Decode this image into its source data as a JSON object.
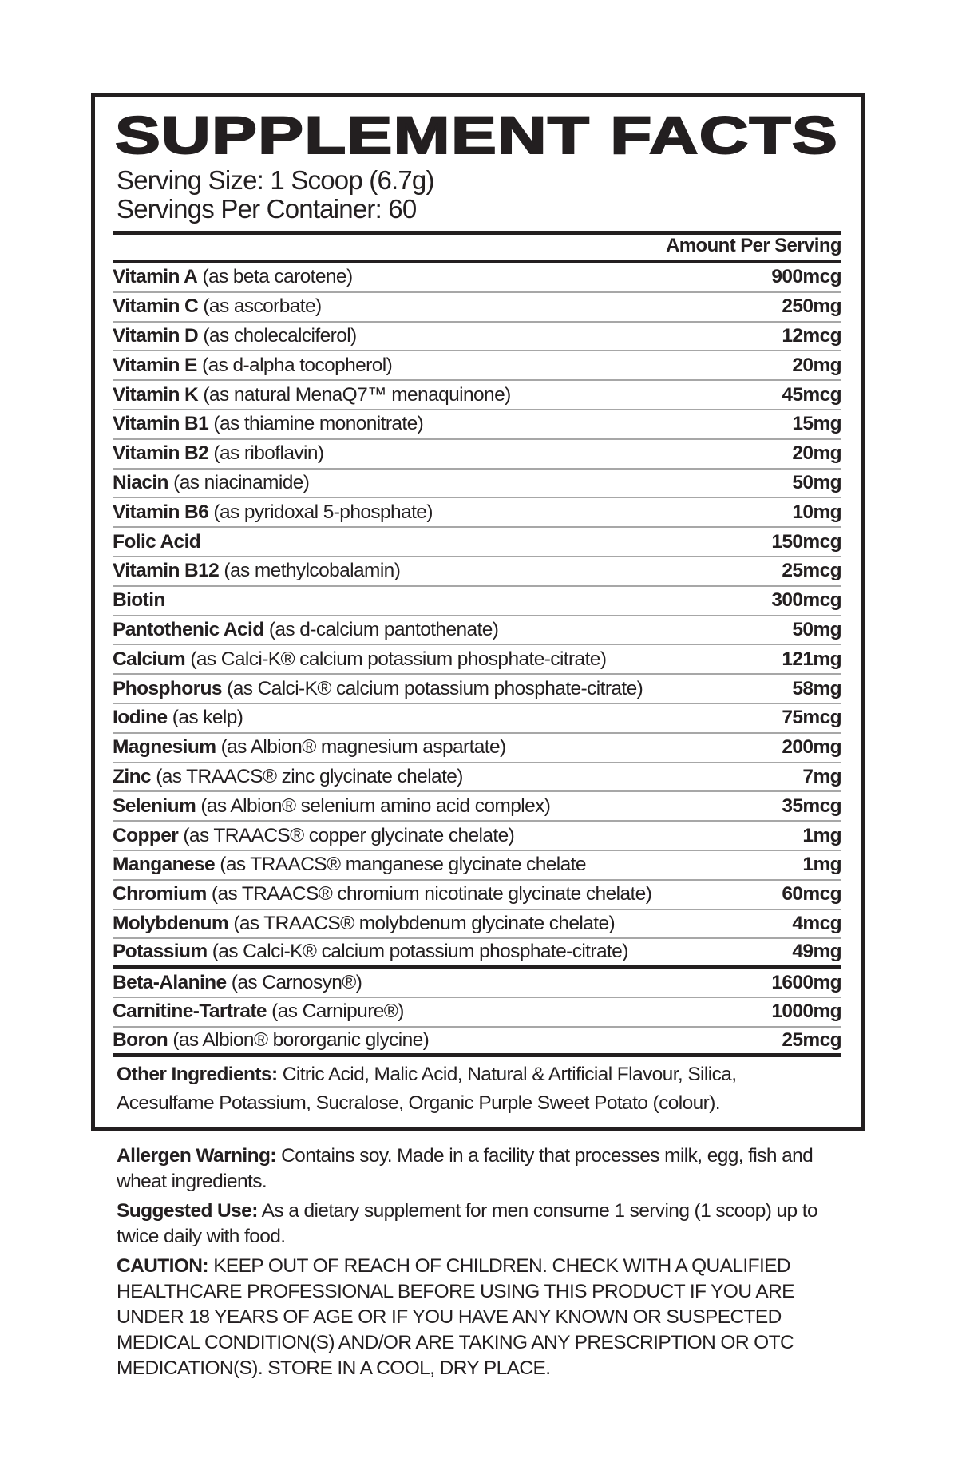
{
  "title": "SUPPLEMENT FACTS",
  "serving_size": "Serving Size: 1 Scoop (6.7g)",
  "servings_per_container": "Servings Per Container: 60",
  "amount_header": "Amount Per Serving",
  "nutrients": [
    {
      "name": "Vitamin A",
      "source": "(as beta carotene)",
      "amount": "900mcg"
    },
    {
      "name": "Vitamin C",
      "source": "(as ascorbate)",
      "amount": "250mg"
    },
    {
      "name": "Vitamin D",
      "source": "(as cholecalciferol)",
      "amount": "12mcg"
    },
    {
      "name": "Vitamin E",
      "source": "(as d-alpha tocopherol)",
      "amount": "20mg"
    },
    {
      "name": "Vitamin K",
      "source": "(as natural MenaQ7™ menaquinone)",
      "amount": "45mcg"
    },
    {
      "name": "Vitamin B1",
      "source": "(as thiamine mononitrate)",
      "amount": "15mg"
    },
    {
      "name": "Vitamin B2",
      "source": "(as riboflavin)",
      "amount": "20mg"
    },
    {
      "name": "Niacin",
      "source": "(as niacinamide)",
      "amount": "50mg"
    },
    {
      "name": "Vitamin B6",
      "source": "(as pyridoxal 5-phosphate)",
      "amount": "10mg"
    },
    {
      "name": "Folic Acid",
      "source": "",
      "amount": "150mcg"
    },
    {
      "name": "Vitamin B12",
      "source": "(as methylcobalamin)",
      "amount": "25mcg"
    },
    {
      "name": "Biotin",
      "source": "",
      "amount": "300mcg"
    },
    {
      "name": "Pantothenic Acid",
      "source": "(as d-calcium pantothenate)",
      "amount": "50mg"
    },
    {
      "name": "Calcium",
      "source": "(as Calci-K® calcium potassium phosphate-citrate)",
      "amount": "121mg"
    },
    {
      "name": "Phosphorus",
      "source": "(as Calci-K®  calcium potassium phosphate-citrate)",
      "amount": "58mg"
    },
    {
      "name": "Iodine",
      "source": "(as kelp)",
      "amount": "75mcg"
    },
    {
      "name": "Magnesium",
      "source": "(as Albion® magnesium aspartate)",
      "amount": "200mg"
    },
    {
      "name": "Zinc",
      "source": "(as TRAACS®  zinc glycinate chelate)",
      "amount": "7mg"
    },
    {
      "name": "Selenium",
      "source": "(as Albion® selenium amino acid complex)",
      "amount": "35mcg"
    },
    {
      "name": "Copper",
      "source": "(as TRAACS® copper glycinate chelate)",
      "amount": "1mg"
    },
    {
      "name": "Manganese",
      "source": "(as TRAACS® manganese glycinate chelate",
      "amount": "1mg"
    },
    {
      "name": "Chromium",
      "source": "(as TRAACS® chromium nicotinate glycinate chelate)",
      "amount": "60mcg"
    },
    {
      "name": "Molybdenum",
      "source": "(as TRAACS® molybdenum glycinate chelate)",
      "amount": "4mcg"
    },
    {
      "name": "Potassium",
      "source": "(as Calci-K® calcium potassium phosphate-citrate)",
      "amount": "49mg"
    },
    {
      "name": "Beta-Alanine",
      "source": "(as Carnosyn®)",
      "amount": "1600mg"
    },
    {
      "name": "Carnitine-Tartrate",
      "source": "(as Carnipure®)",
      "amount": "1000mg"
    },
    {
      "name": "Boron",
      "source": "(as Albion® bororganic glycine)",
      "amount": "25mcg"
    }
  ],
  "other_ingredients": {
    "label": "Other Ingredients:",
    "text": "Citric Acid, Malic Acid, Natural & Artificial Flavour, Silica, Acesulfame Potassium, Sucralose, Organic Purple Sweet Potato (colour)."
  },
  "allergen": {
    "label": "Allergen Warning:",
    "text": "Contains soy. Made in a facility that processes milk, egg, fish and wheat ingredients."
  },
  "suggested_use": {
    "label": "Suggested Use:",
    "text": "As a dietary supplement for men consume 1 serving (1 scoop) up to twice daily with food."
  },
  "caution": {
    "label": "CAUTION:",
    "text": "KEEP OUT OF REACH OF CHILDREN. CHECK WITH A QUALIFIED HEALTHCARE PROFESSIONAL BEFORE USING THIS PRODUCT IF YOU ARE UNDER 18 YEARS OF AGE OR IF YOU HAVE ANY KNOWN OR SUSPECTED MEDICAL CONDITION(S) AND/OR ARE TAKING ANY PRESCRIPTION OR OTC MEDICATION(S). STORE IN A COOL, DRY PLACE."
  }
}
